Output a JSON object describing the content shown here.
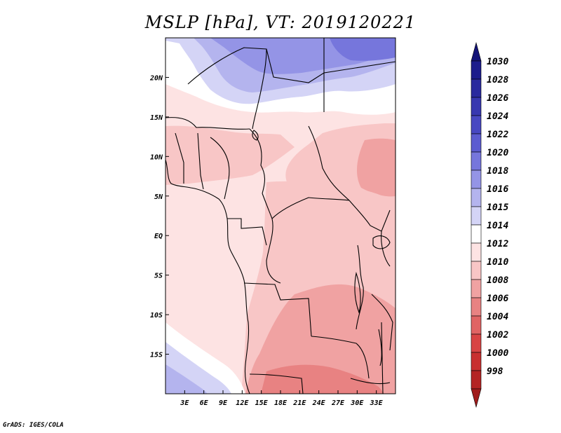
{
  "title": "MSLP [hPa], VT: 2019120221",
  "credit": "GrADS: IGES/COLA",
  "map": {
    "variable": "MSLP",
    "units": "hPa",
    "valid_time": "2019120221",
    "lon_range": [
      0,
      36
    ],
    "lat_range": [
      -20,
      25
    ],
    "lon_ticks": [
      {
        "value": 3,
        "label": "3E"
      },
      {
        "value": 6,
        "label": "6E"
      },
      {
        "value": 9,
        "label": "9E"
      },
      {
        "value": 12,
        "label": "12E"
      },
      {
        "value": 15,
        "label": "15E"
      },
      {
        "value": 18,
        "label": "18E"
      },
      {
        "value": 21,
        "label": "21E"
      },
      {
        "value": 24,
        "label": "24E"
      },
      {
        "value": 27,
        "label": "27E"
      },
      {
        "value": 30,
        "label": "30E"
      },
      {
        "value": 33,
        "label": "33E"
      }
    ],
    "lat_ticks": [
      {
        "value": 20,
        "label": "20N"
      },
      {
        "value": 15,
        "label": "15N"
      },
      {
        "value": 10,
        "label": "10N"
      },
      {
        "value": 5,
        "label": "5N"
      },
      {
        "value": 0,
        "label": "EQ"
      },
      {
        "value": -5,
        "label": "5S"
      },
      {
        "value": -10,
        "label": "10S"
      },
      {
        "value": -15,
        "label": "15S"
      }
    ]
  },
  "colorbar": {
    "levels": [
      {
        "label": "1030",
        "color": "#1c1c8c"
      },
      {
        "label": "1028",
        "color": "#2a2a9e"
      },
      {
        "label": "1026",
        "color": "#3838b0"
      },
      {
        "label": "1024",
        "color": "#4848c2"
      },
      {
        "label": "1022",
        "color": "#5c5cd0"
      },
      {
        "label": "1020",
        "color": "#7676dc"
      },
      {
        "label": "1018",
        "color": "#9494e6"
      },
      {
        "label": "1016",
        "color": "#b4b4ee"
      },
      {
        "label": "1015",
        "color": "#d4d4f6"
      },
      {
        "label": "1014",
        "color": "#ffffff"
      },
      {
        "label": "1012",
        "color": "#fde3e3"
      },
      {
        "label": "1010",
        "color": "#f8c6c6"
      },
      {
        "label": "1008",
        "color": "#f0a2a2"
      },
      {
        "label": "1006",
        "color": "#e88282"
      },
      {
        "label": "1004",
        "color": "#e06464"
      },
      {
        "label": "1002",
        "color": "#d84444"
      },
      {
        "label": "1000",
        "color": "#c83030"
      },
      {
        "label": "998",
        "color": "#b42424"
      }
    ],
    "top_arrow_color": "#141478",
    "bottom_arrow_color": "#a01c1c"
  }
}
